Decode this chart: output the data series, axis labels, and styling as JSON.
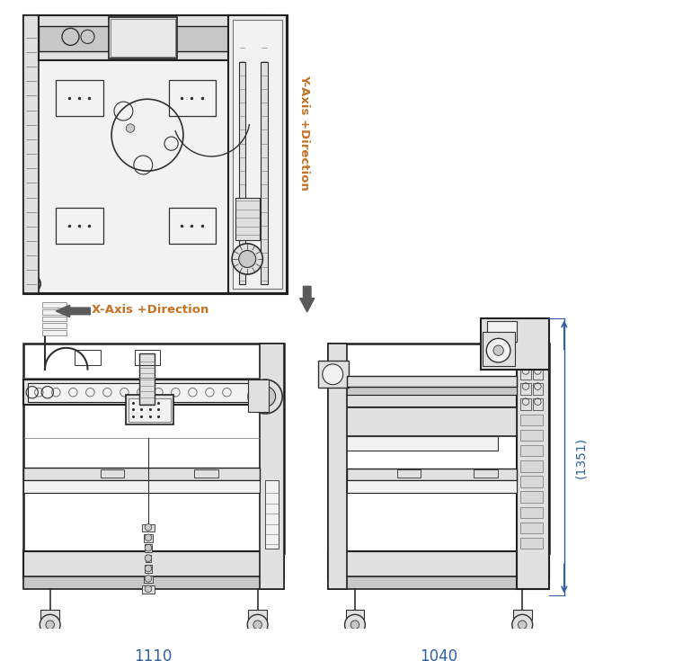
{
  "bg_color": "#ffffff",
  "arrow_color": "#5a5a5a",
  "text_color_orange": "#c87020",
  "text_color_blue": "#3060a0",
  "line_color": "#202020",
  "mid_gray": "#707070",
  "dark_gray": "#303030",
  "light_gray": "#b0b0b0",
  "fill_light": "#f2f2f2",
  "fill_med": "#e0e0e0",
  "fill_dark": "#c8c8c8",
  "y_axis_label": "Y-Axis +Direction",
  "x_axis_label": "X-Axis +Direction",
  "dim_1110": "1110",
  "dim_1040": "1040",
  "dim_1351": "(1351)"
}
